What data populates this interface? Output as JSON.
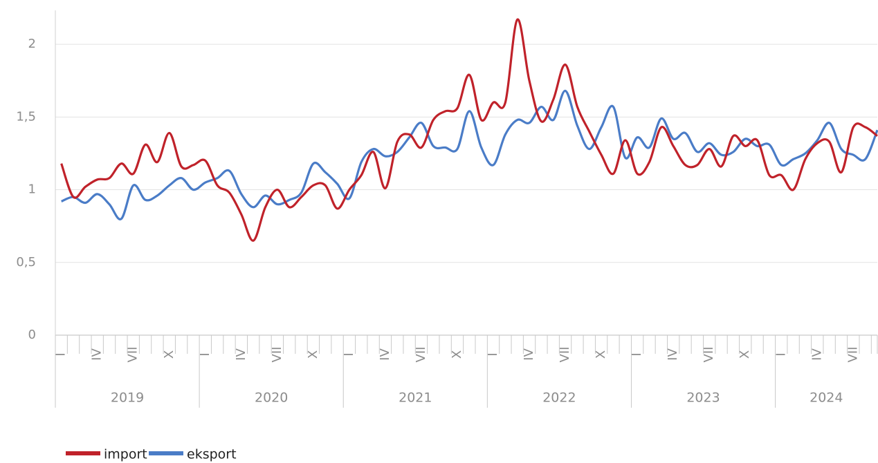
{
  "chart_data": {
    "type": "line",
    "ylim": [
      0,
      2.2
    ],
    "yticks": [
      0,
      {
        "value": 0.5,
        "label": "0,5"
      },
      1,
      {
        "value": 1.5,
        "label": "1,5"
      },
      2
    ],
    "grid": true,
    "legend": "bottom-left",
    "categories": [
      "I",
      null,
      null,
      "IV",
      null,
      null,
      "VII",
      null,
      null,
      "X",
      null,
      null,
      "I",
      null,
      null,
      "IV",
      null,
      null,
      "VII",
      null,
      null,
      "X",
      null,
      null,
      "I",
      null,
      null,
      "IV",
      null,
      null,
      "VII",
      null,
      null,
      "X",
      null,
      null,
      "I",
      null,
      null,
      "IV",
      null,
      null,
      "VII",
      null,
      null,
      "X",
      null,
      null,
      "I",
      null,
      null,
      "IV",
      null,
      null,
      "VII",
      null,
      null,
      "X",
      null,
      null,
      "I",
      null,
      null,
      "IV",
      null,
      null,
      "VII",
      null,
      null
    ],
    "x_groups": [
      "2019",
      "2020",
      "2021",
      "2022",
      "2023",
      "2024"
    ],
    "series": [
      {
        "name": "import",
        "color": "#c0222a",
        "values": [
          1.18,
          0.95,
          1.02,
          1.07,
          1.08,
          1.18,
          1.11,
          1.31,
          1.19,
          1.39,
          1.16,
          1.17,
          1.2,
          1.03,
          0.98,
          0.83,
          0.65,
          0.88,
          1.0,
          0.88,
          0.95,
          1.03,
          1.03,
          0.87,
          1.0,
          1.1,
          1.26,
          1.01,
          1.33,
          1.38,
          1.29,
          1.48,
          1.54,
          1.56,
          1.79,
          1.48,
          1.6,
          1.6,
          2.17,
          1.75,
          1.47,
          1.62,
          1.86,
          1.57,
          1.4,
          1.24,
          1.11,
          1.34,
          1.11,
          1.19,
          1.43,
          1.3,
          1.17,
          1.17,
          1.28,
          1.16,
          1.37,
          1.3,
          1.34,
          1.1,
          1.1,
          1.0,
          1.21,
          1.32,
          1.33,
          1.12,
          1.43,
          1.43,
          1.37
        ]
      },
      {
        "name": "eksport",
        "color": "#4a7cc7",
        "values": [
          0.92,
          0.95,
          0.91,
          0.97,
          0.9,
          0.8,
          1.03,
          0.93,
          0.96,
          1.03,
          1.08,
          1.0,
          1.05,
          1.08,
          1.13,
          0.97,
          0.88,
          0.96,
          0.9,
          0.93,
          0.98,
          1.18,
          1.12,
          1.04,
          0.94,
          1.19,
          1.28,
          1.23,
          1.26,
          1.36,
          1.46,
          1.3,
          1.29,
          1.28,
          1.54,
          1.29,
          1.17,
          1.38,
          1.48,
          1.46,
          1.57,
          1.48,
          1.68,
          1.44,
          1.28,
          1.43,
          1.57,
          1.22,
          1.36,
          1.29,
          1.49,
          1.35,
          1.39,
          1.26,
          1.32,
          1.24,
          1.26,
          1.35,
          1.3,
          1.31,
          1.17,
          1.21,
          1.25,
          1.34,
          1.46,
          1.28,
          1.24,
          1.21,
          1.41
        ]
      }
    ]
  }
}
